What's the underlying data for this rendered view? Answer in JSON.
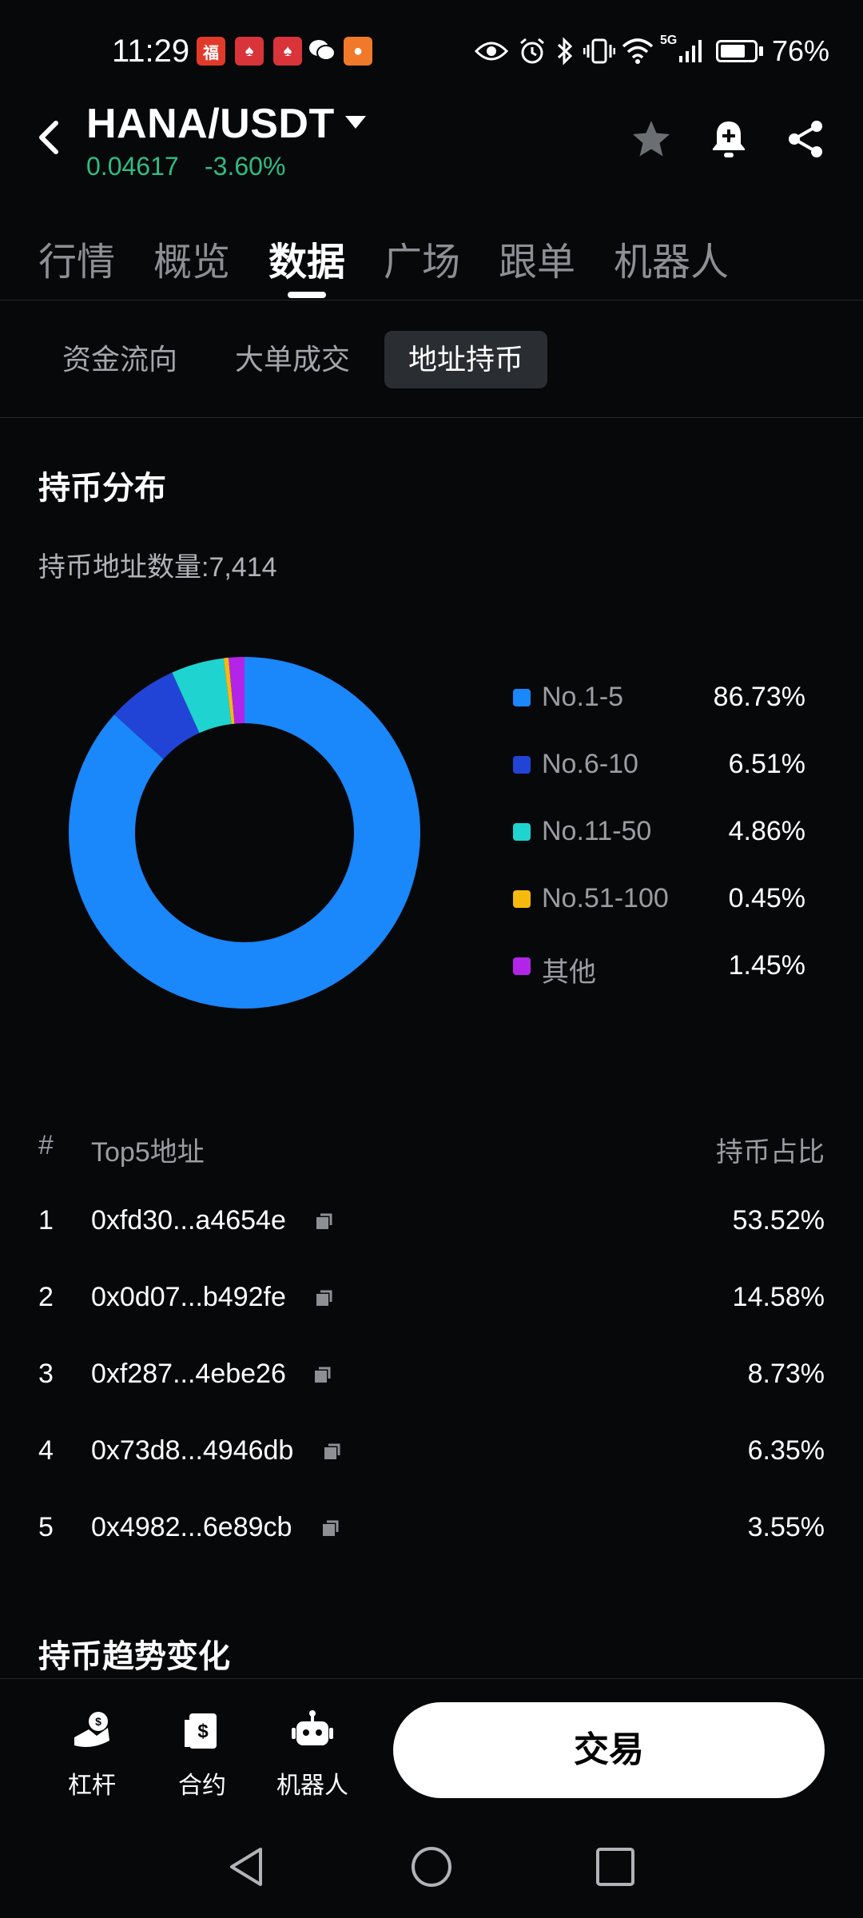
{
  "status_bar": {
    "time": "11:29",
    "network": "5G",
    "battery": "76%",
    "battery_level": 0.76,
    "icons": [
      "red-packet-icon",
      "game-app-icon",
      "game-app-icon",
      "wechat-icon",
      "orange-app-icon",
      "eye-icon",
      "alarm-icon",
      "bluetooth-icon",
      "vibrate-icon",
      "wifi-icon",
      "signal-icon",
      "battery-icon"
    ]
  },
  "header": {
    "pair": "HANA/USDT",
    "price": "0.04617",
    "change": "-3.60%",
    "price_color": "#2ebd85"
  },
  "main_tabs": [
    {
      "label": "行情",
      "active": false
    },
    {
      "label": "概览",
      "active": false
    },
    {
      "label": "数据",
      "active": true
    },
    {
      "label": "广场",
      "active": false
    },
    {
      "label": "跟单",
      "active": false
    },
    {
      "label": "机器人",
      "active": false
    }
  ],
  "sub_tabs": [
    {
      "label": "资金流向",
      "active": false
    },
    {
      "label": "大单成交",
      "active": false
    },
    {
      "label": "地址持币",
      "active": true
    }
  ],
  "distribution": {
    "title": "持币分布",
    "address_count_label": "持币地址数量:7,414",
    "legend": [
      {
        "label": "No.1-5",
        "value": "86.73%",
        "color": "#1a87fb"
      },
      {
        "label": "No.6-10",
        "value": "6.51%",
        "color": "#2244d6"
      },
      {
        "label": "No.11-50",
        "value": "4.86%",
        "color": "#1fd4d0"
      },
      {
        "label": "No.51-100",
        "value": "0.45%",
        "color": "#f6b90e"
      },
      {
        "label": "其他",
        "value": "1.45%",
        "color": "#b225e8"
      }
    ]
  },
  "chart_data": {
    "type": "pie",
    "categories": [
      "No.1-5",
      "No.6-10",
      "No.11-50",
      "No.51-100",
      "其他"
    ],
    "values": [
      86.73,
      6.51,
      4.86,
      0.45,
      1.45
    ],
    "colors": [
      "#1a87fb",
      "#2244d6",
      "#1fd4d0",
      "#f6b90e",
      "#b225e8"
    ],
    "donut": true,
    "legend_position": "right"
  },
  "top5": {
    "col_num": "#",
    "col_addr": "Top5地址",
    "col_pct": "持币占比",
    "rows": [
      {
        "num": "1",
        "addr": "0xfd30...a4654e",
        "pct": "53.52%"
      },
      {
        "num": "2",
        "addr": "0x0d07...b492fe",
        "pct": "14.58%"
      },
      {
        "num": "3",
        "addr": "0xf287...4ebe26",
        "pct": "8.73%"
      },
      {
        "num": "4",
        "addr": "0x73d8...4946db",
        "pct": "6.35%"
      },
      {
        "num": "5",
        "addr": "0x4982...6e89cb",
        "pct": "3.55%"
      }
    ]
  },
  "trend": {
    "title": "持币趋势变化"
  },
  "bottom_bar": {
    "items": [
      {
        "label": "杠杆",
        "icon": "leverage-icon"
      },
      {
        "label": "合约",
        "icon": "contract-icon"
      },
      {
        "label": "机器人",
        "icon": "robot-icon"
      }
    ],
    "trade_label": "交易"
  }
}
